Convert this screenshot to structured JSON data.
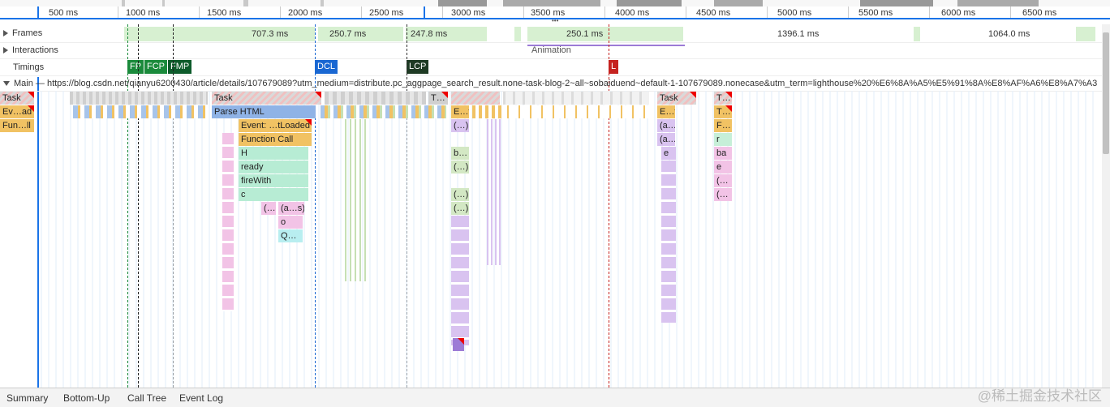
{
  "ruler": {
    "ticks": [
      "500 ms",
      "1000 ms",
      "1500 ms",
      "2000 ms",
      "2500 ms",
      "3000 ms",
      "3500 ms",
      "4000 ms",
      "4500 ms",
      "5000 ms",
      "5500 ms",
      "6000 ms",
      "6500 ms"
    ]
  },
  "tracks": {
    "frames": {
      "label": "Frames",
      "durations": [
        "707.3 ms",
        "250.7 ms",
        "247.8 ms",
        "250.1 ms",
        "1396.1 ms",
        "1064.0 ms"
      ]
    },
    "interactions": {
      "label": "Interactions",
      "animation_label": "Animation"
    },
    "timings": {
      "label": "Timings",
      "markers": [
        {
          "label": "FP",
          "color": "#1a8a3b"
        },
        {
          "label": "FCP",
          "color": "#1a8a3b"
        },
        {
          "label": "FMP",
          "color": "#0d5b2b"
        },
        {
          "label": "DCL",
          "color": "#1967d2"
        },
        {
          "label": "LCP",
          "color": "#1e3a24"
        },
        {
          "label": "L",
          "color": "#c5221f"
        }
      ]
    },
    "main": {
      "label": "Main — https://blog.csdn.net/qianyu6200430/article/details/107679089?utm_medium=distribute.pc_aggpage_search_result.none-task-blog-2~all~sobaiduend~default-1-107679089.nonecase&utm_term=lighthouse%20%E6%8A%A5%E5%91%8A%E8%AF%A6%E8%A7%A3"
    }
  },
  "flame": {
    "task": "Task",
    "event_load": "Ev…ad",
    "function_ll": "Fun…ll",
    "parse_html": "Parse HTML",
    "event_loaded": "Event: …tLoaded",
    "function_call": "Function Call",
    "h": "H",
    "ready": "ready",
    "fire_with": "fireWith",
    "c": "c",
    "anon1": "(…",
    "as": "(a…s)",
    "o": "o",
    "q": "Q…",
    "t_short": "T…",
    "e_t": "E…t",
    "paren": "(…)",
    "b": "b…",
    "ellip_task": "Task",
    "e_t2": "E…t",
    "a_paren": "(a…)",
    "e": "e",
    "t2": "T…",
    "t_task": "T…",
    "f": "F…",
    "r": "r",
    "ba": "ba",
    "e2": "e",
    "paren2": "(…",
    "paren3": "(…"
  },
  "bottom_tabs": [
    "Summary",
    "Bottom-Up",
    "Call Tree",
    "Event Log"
  ],
  "watermark": "@稀土掘金技术社区"
}
